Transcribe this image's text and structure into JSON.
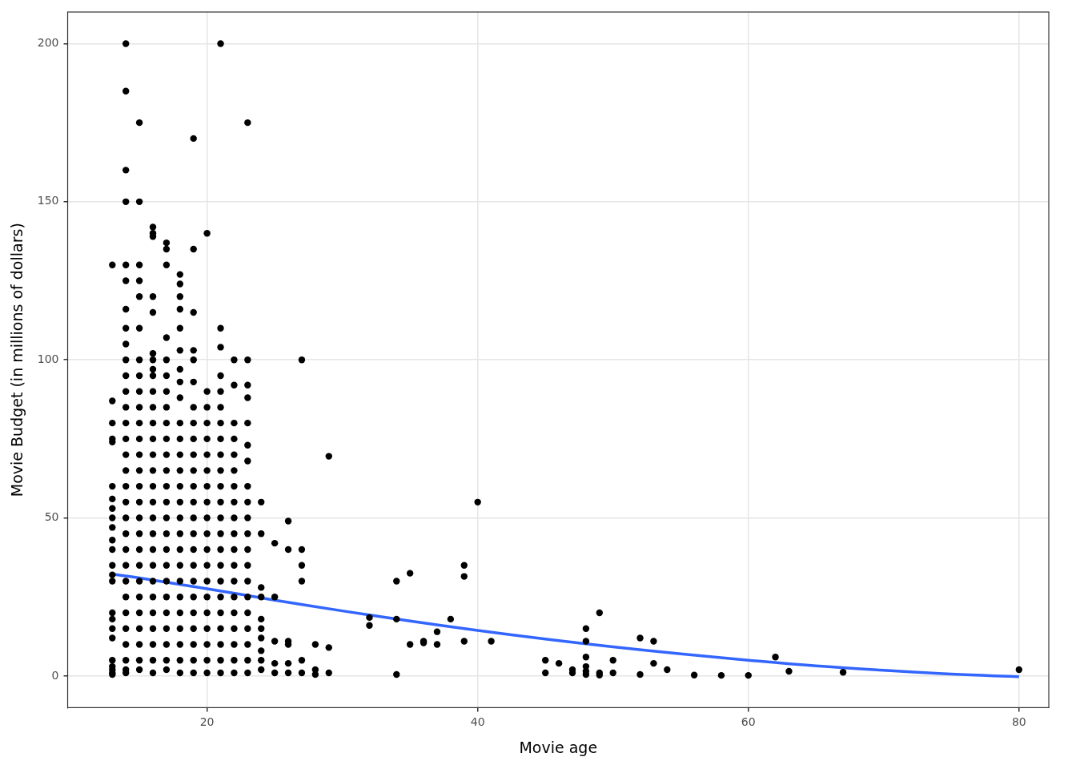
{
  "chart_data": {
    "type": "scatter",
    "xlabel": "Movie age",
    "ylabel": "Movie Budget (in millions of dollars)",
    "xlim": [
      9.7,
      82.2
    ],
    "xticks": [
      20,
      40,
      60,
      80
    ],
    "ylim": [
      -10,
      210
    ],
    "yticks": [
      0,
      50,
      100,
      150,
      200
    ],
    "grid": true,
    "series": [
      {
        "type": "scatter",
        "color": "#000000",
        "marker": "circle",
        "x": [
          13,
          13,
          13,
          13,
          13,
          13,
          13,
          13,
          13,
          13,
          13,
          13,
          13,
          13,
          13,
          13,
          13,
          13,
          13,
          13,
          13,
          13,
          13,
          13,
          14,
          14,
          14,
          14,
          14,
          14,
          14,
          14,
          14,
          14,
          14,
          14,
          14,
          14,
          14,
          14,
          14,
          14,
          14,
          14,
          14,
          14,
          14,
          14,
          14,
          14,
          14,
          14,
          14,
          14,
          14,
          15,
          15,
          15,
          15,
          15,
          15,
          15,
          15,
          15,
          15,
          15,
          15,
          15,
          15,
          15,
          15,
          15,
          15,
          15,
          15,
          15,
          15,
          15,
          15,
          15,
          15,
          15,
          16,
          16,
          16,
          16,
          16,
          16,
          16,
          16,
          16,
          16,
          16,
          16,
          16,
          16,
          16,
          16,
          16,
          16,
          16,
          16,
          16,
          16,
          16,
          16,
          16,
          16,
          16,
          16,
          17,
          17,
          17,
          17,
          17,
          17,
          17,
          17,
          17,
          17,
          17,
          17,
          17,
          17,
          17,
          17,
          17,
          17,
          17,
          17,
          17,
          17,
          17,
          17,
          17,
          18,
          18,
          18,
          18,
          18,
          18,
          18,
          18,
          18,
          18,
          18,
          18,
          18,
          18,
          18,
          18,
          18,
          18,
          18,
          18,
          18,
          18,
          18,
          18,
          18,
          18,
          19,
          19,
          19,
          19,
          19,
          19,
          19,
          19,
          19,
          19,
          19,
          19,
          19,
          19,
          19,
          19,
          19,
          19,
          19,
          19,
          19,
          19,
          19,
          19,
          20,
          20,
          20,
          20,
          20,
          20,
          20,
          20,
          20,
          20,
          20,
          20,
          20,
          20,
          20,
          20,
          20,
          20,
          20,
          20,
          21,
          21,
          21,
          21,
          21,
          21,
          21,
          21,
          21,
          21,
          21,
          21,
          21,
          21,
          21,
          21,
          21,
          21,
          21,
          21,
          21,
          21,
          21,
          22,
          22,
          22,
          22,
          22,
          22,
          22,
          22,
          22,
          22,
          22,
          22,
          22,
          22,
          22,
          22,
          22,
          22,
          22,
          23,
          23,
          23,
          23,
          23,
          23,
          23,
          23,
          23,
          23,
          23,
          23,
          23,
          23,
          23,
          23,
          23,
          23,
          23,
          23,
          24,
          24,
          24,
          24,
          24,
          24,
          24,
          24,
          24,
          24,
          25,
          25,
          25,
          25,
          25,
          26,
          26,
          26,
          26,
          26,
          26,
          27,
          27,
          27,
          27,
          27,
          27,
          28,
          28,
          28,
          29,
          29,
          29,
          32,
          32,
          34,
          34,
          34,
          35,
          35,
          36,
          36,
          37,
          37,
          38,
          39,
          39,
          39,
          40,
          41,
          45,
          45,
          46,
          47,
          47,
          48,
          48,
          48,
          48,
          48,
          48,
          49,
          49,
          49,
          50,
          50,
          52,
          52,
          53,
          53,
          54,
          56,
          58,
          60,
          62,
          63,
          67,
          80
        ],
        "values": [
          130,
          87,
          80,
          75,
          74,
          60,
          56,
          53,
          50,
          47,
          43,
          40,
          35,
          32,
          30,
          20,
          18,
          15,
          12,
          5,
          3,
          2,
          1,
          0.5,
          200,
          185,
          160,
          150,
          130,
          125,
          116,
          110,
          105,
          100,
          95,
          90,
          85,
          80,
          75,
          70,
          65,
          60,
          55,
          50,
          45,
          40,
          35,
          30,
          25,
          20,
          15,
          10,
          5,
          2,
          1,
          175,
          150,
          130,
          125,
          120,
          110,
          100,
          95,
          90,
          85,
          80,
          75,
          70,
          65,
          60,
          55,
          50,
          45,
          40,
          35,
          30,
          25,
          20,
          15,
          10,
          5,
          2,
          142,
          140,
          139,
          120,
          115,
          102,
          100,
          97,
          95,
          90,
          85,
          80,
          75,
          70,
          65,
          60,
          55,
          50,
          45,
          40,
          35,
          30,
          25,
          20,
          15,
          10,
          5,
          1,
          137,
          135,
          130,
          107,
          100,
          95,
          90,
          85,
          80,
          75,
          70,
          65,
          60,
          55,
          50,
          45,
          40,
          35,
          30,
          25,
          20,
          15,
          10,
          5,
          2,
          127,
          124,
          120,
          116,
          110,
          103,
          97,
          93,
          88,
          80,
          75,
          70,
          65,
          60,
          55,
          50,
          45,
          40,
          35,
          30,
          25,
          20,
          15,
          10,
          5,
          1,
          170,
          135,
          115,
          103,
          100,
          93,
          85,
          80,
          75,
          70,
          65,
          60,
          55,
          50,
          45,
          40,
          35,
          30,
          25,
          20,
          15,
          10,
          5,
          1,
          140,
          90,
          85,
          80,
          75,
          70,
          65,
          60,
          55,
          50,
          45,
          40,
          35,
          30,
          25,
          20,
          15,
          10,
          5,
          1,
          200,
          110,
          104,
          95,
          90,
          85,
          80,
          75,
          70,
          65,
          60,
          55,
          50,
          45,
          40,
          35,
          30,
          25,
          20,
          15,
          10,
          5,
          1,
          100,
          92,
          80,
          75,
          70,
          65,
          60,
          55,
          50,
          45,
          40,
          35,
          30,
          25,
          20,
          15,
          10,
          5,
          1,
          175,
          100,
          92,
          88,
          80,
          73,
          68,
          60,
          55,
          50,
          45,
          40,
          35,
          30,
          25,
          20,
          15,
          10,
          5,
          1,
          55,
          45,
          28,
          25,
          18,
          15,
          12,
          8,
          5,
          2,
          42,
          25,
          11,
          4,
          1,
          49,
          40,
          11,
          10,
          4,
          1,
          100,
          40,
          35,
          30,
          5,
          1,
          10,
          2,
          0.5,
          69.5,
          9,
          1,
          18.5,
          16,
          30,
          18,
          0.5,
          32.5,
          10,
          11,
          10.5,
          14,
          10,
          18,
          35,
          31.5,
          11,
          55,
          11,
          5,
          1,
          4,
          2,
          1,
          15,
          11,
          6,
          3,
          1.5,
          0.5,
          20,
          1,
          0.3,
          5,
          1,
          12,
          0.5,
          11,
          4,
          2,
          0.3,
          0.2,
          0.2,
          6,
          1.5,
          1.2,
          2
        ]
      },
      {
        "type": "line",
        "color": "#3366ff",
        "line_style": "solid",
        "x": [
          13,
          15,
          20,
          25,
          30,
          35,
          40,
          45,
          50,
          55,
          60,
          65,
          70,
          75,
          80
        ],
        "values": [
          32.2,
          31,
          27.6,
          24,
          20.6,
          17.4,
          14.4,
          11.7,
          9.2,
          7,
          5,
          3.2,
          1.8,
          0.6,
          -0.2
        ]
      }
    ]
  }
}
